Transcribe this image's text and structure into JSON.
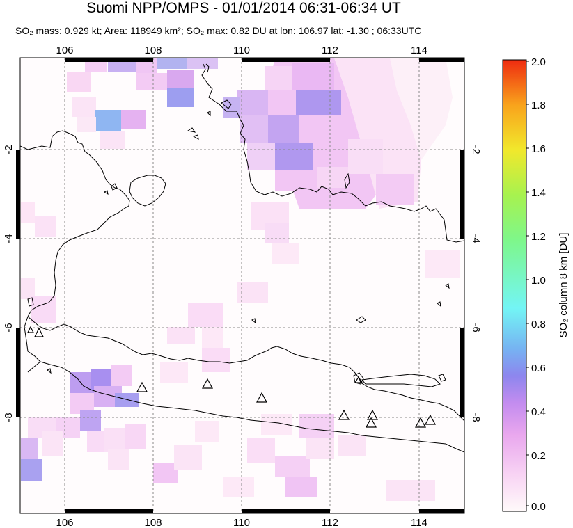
{
  "header": {
    "title": "Suomi NPP/OMPS - 01/01/2014 06:31-06:34 UT",
    "stats": "SO₂ mass: 0.929 kt; Area: 118949 km²; SO₂ max: 0.82 DU at lon: 106.97 lat: -1.30 ; 06:33UTC"
  },
  "map": {
    "lon_range": [
      105,
      115
    ],
    "lat_range": [
      -10,
      0
    ],
    "lon_ticks": [
      "106",
      "108",
      "110",
      "112",
      "114"
    ],
    "lat_ticks": [
      "-2",
      "-4",
      "-6",
      "-8"
    ],
    "volcano_count": 11
  },
  "colorbar": {
    "label": "SO₂ column 8 km [DU]",
    "ticks": [
      "2.0",
      "1.8",
      "1.6",
      "1.4",
      "1.2",
      "1.0",
      "0.8",
      "0.6",
      "0.4",
      "0.2",
      "0.0"
    ],
    "colors": [
      "#fffafa",
      "#f8d4f4",
      "#e9a7ee",
      "#c38cef",
      "#8d86ee",
      "#76b3f2",
      "#73f5f5",
      "#7ef78b",
      "#a7f24f",
      "#f1e82c",
      "#f9a31c",
      "#ee2b10"
    ]
  }
}
